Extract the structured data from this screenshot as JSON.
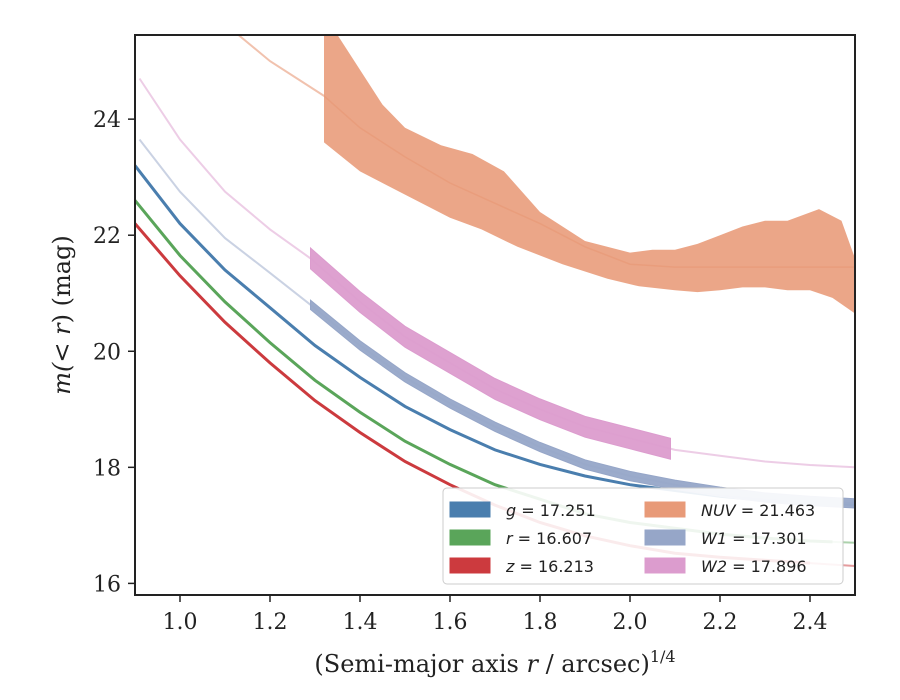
{
  "chart_data": {
    "type": "line",
    "xlabel_text": "(Semi-major axis ",
    "xlabel_var": "r",
    "xlabel_unit": " / arcsec)",
    "xlabel_sup": "1/4",
    "ylabel_pre": "m(",
    "ylabel_var": "< r",
    "ylabel_post": ") (mag)",
    "xlim": [
      0.9,
      2.5
    ],
    "ylim": [
      25.45,
      15.8
    ],
    "xticks": [
      "1.0",
      "1.2",
      "1.4",
      "1.6",
      "1.8",
      "2.0",
      "2.2",
      "2.4"
    ],
    "yticks": [
      "16",
      "18",
      "20",
      "22",
      "24"
    ],
    "colors": {
      "g": "#4a7eae",
      "r": "#5aa55a",
      "z": "#cc3a3e",
      "NUV": "#e89a78",
      "W1": "#96a6c8",
      "W2": "#dc9cce"
    },
    "series": [
      {
        "key": "z",
        "legend": "z = 16.213",
        "x": [
          0.9,
          1.0,
          1.1,
          1.2,
          1.3,
          1.4,
          1.5,
          1.6,
          1.7,
          1.8,
          1.9,
          2.0,
          2.1,
          2.2,
          2.3,
          2.4,
          2.5
        ],
        "y": [
          22.2,
          21.3,
          20.5,
          19.8,
          19.15,
          18.6,
          18.1,
          17.7,
          17.35,
          17.05,
          16.82,
          16.65,
          16.52,
          16.45,
          16.4,
          16.35,
          16.3
        ],
        "data_xmax": 2.4
      },
      {
        "key": "r",
        "legend": "r = 16.607",
        "x": [
          0.9,
          1.0,
          1.1,
          1.2,
          1.3,
          1.4,
          1.5,
          1.6,
          1.7,
          1.8,
          1.9,
          2.0,
          2.1,
          2.2,
          2.3,
          2.4,
          2.5
        ],
        "y": [
          22.6,
          21.65,
          20.85,
          20.15,
          19.5,
          18.95,
          18.45,
          18.05,
          17.7,
          17.45,
          17.2,
          17.05,
          16.95,
          16.85,
          16.78,
          16.73,
          16.7
        ],
        "data_xmax": 2.45
      },
      {
        "key": "g",
        "legend": "g = 17.251",
        "x": [
          0.9,
          1.0,
          1.1,
          1.2,
          1.3,
          1.4,
          1.5,
          1.6,
          1.7,
          1.8,
          1.9,
          2.0,
          2.1,
          2.2,
          2.3,
          2.4,
          2.5
        ],
        "y": [
          23.2,
          22.2,
          21.4,
          20.75,
          20.1,
          19.55,
          19.05,
          18.65,
          18.3,
          18.05,
          17.85,
          17.7,
          17.6,
          17.5,
          17.43,
          17.38,
          17.35
        ],
        "data_xmax": 2.35
      },
      {
        "key": "W1",
        "legend": "W1 = 17.301",
        "x": [
          0.91,
          1.0,
          1.1,
          1.2,
          1.29,
          1.4,
          1.5,
          1.6,
          1.7,
          1.8,
          1.9,
          2.0,
          2.1,
          2.2,
          2.3,
          2.4,
          2.5
        ],
        "y": [
          23.65,
          22.75,
          21.95,
          21.35,
          20.8,
          20.1,
          19.55,
          19.1,
          18.7,
          18.35,
          18.05,
          17.85,
          17.7,
          17.58,
          17.48,
          17.42,
          17.38
        ],
        "data_xmin": 1.29,
        "data_xmax": 2.5,
        "band": 0.08
      },
      {
        "key": "W2",
        "legend": "W2 = 17.896",
        "x": [
          0.91,
          1.0,
          1.1,
          1.2,
          1.29,
          1.4,
          1.5,
          1.6,
          1.7,
          1.8,
          1.9,
          2.0,
          2.1,
          2.2,
          2.3,
          2.4,
          2.5
        ],
        "y": [
          24.7,
          23.65,
          22.75,
          22.1,
          21.6,
          20.85,
          20.25,
          19.8,
          19.35,
          19.0,
          18.7,
          18.5,
          18.3,
          18.2,
          18.1,
          18.04,
          18.0
        ],
        "data_xmin": 1.29,
        "data_xmax": 2.09,
        "band": 0.18
      }
    ],
    "nuv": {
      "key": "NUV",
      "legend": "NUV = 21.463",
      "center_x": [
        1.13,
        1.2,
        1.27,
        1.32,
        1.4,
        1.5,
        1.6,
        1.7,
        1.8,
        1.9,
        2.0,
        2.1,
        2.2,
        2.3,
        2.4,
        2.5
      ],
      "center_y": [
        25.45,
        25.0,
        24.65,
        24.4,
        23.85,
        23.35,
        22.9,
        22.55,
        22.2,
        21.8,
        21.5,
        21.45,
        21.45,
        21.45,
        21.45,
        21.45
      ],
      "upper_x": [
        1.32,
        1.4,
        1.5,
        1.6,
        1.67,
        1.75,
        1.85,
        1.95,
        2.02,
        2.1,
        2.15,
        2.2,
        2.25,
        2.3,
        2.35,
        2.4,
        2.45,
        2.5
      ],
      "upper_y": [
        23.6,
        23.1,
        22.7,
        22.3,
        22.1,
        21.8,
        21.5,
        21.25,
        21.12,
        21.05,
        21.02,
        21.05,
        21.1,
        21.1,
        21.05,
        21.05,
        20.92,
        20.65
      ],
      "lower_x": [
        2.5,
        2.47,
        2.42,
        2.35,
        2.3,
        2.25,
        2.2,
        2.15,
        2.1,
        2.05,
        2.0,
        1.9,
        1.8,
        1.72,
        1.65,
        1.58,
        1.5,
        1.45,
        1.35,
        1.32
      ],
      "lower_y": [
        21.6,
        22.25,
        22.45,
        22.25,
        22.25,
        22.15,
        22.0,
        21.85,
        21.75,
        21.75,
        21.7,
        21.9,
        22.4,
        23.1,
        23.4,
        23.55,
        23.85,
        24.25,
        25.45,
        25.45
      ],
      "data_xmin": 1.32
    },
    "legend": {
      "placement": "lower right",
      "columns": [
        [
          "g",
          "r",
          "z"
        ],
        [
          "NUV",
          "W1",
          "W2"
        ]
      ]
    }
  }
}
